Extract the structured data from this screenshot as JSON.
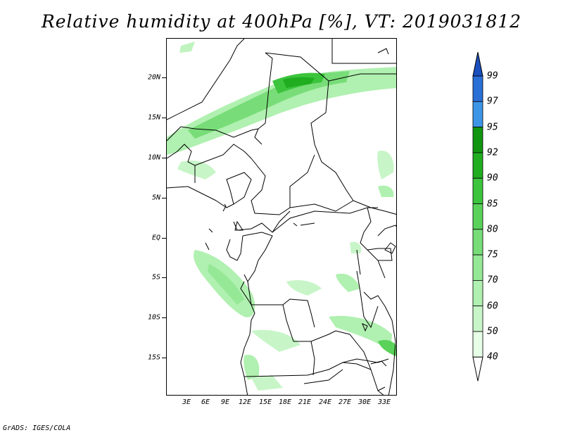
{
  "title": "Relative humidity at 400hPa [%], VT: 2019031812",
  "credit": "GrADS: IGES/COLA",
  "map": {
    "lat_labels": [
      "20N",
      "15N",
      "10N",
      "5N",
      "EQ",
      "5S",
      "10S",
      "15S"
    ],
    "lon_labels": [
      "3E",
      "6E",
      "9E",
      "12E",
      "15E",
      "18E",
      "21E",
      "24E",
      "27E",
      "30E",
      "33E"
    ]
  },
  "colorbar": {
    "levels": [
      "40",
      "50",
      "60",
      "70",
      "75",
      "80",
      "85",
      "90",
      "92",
      "95",
      "97",
      "99"
    ],
    "colors": [
      "#ffffff",
      "#e6ffe6",
      "#c8f5c8",
      "#b0f0b0",
      "#95e895",
      "#78dd78",
      "#5ad25a",
      "#3cc43c",
      "#20ad20",
      "#119511",
      "#3d95e6",
      "#2a6fd6",
      "#1a4fbd"
    ]
  }
}
